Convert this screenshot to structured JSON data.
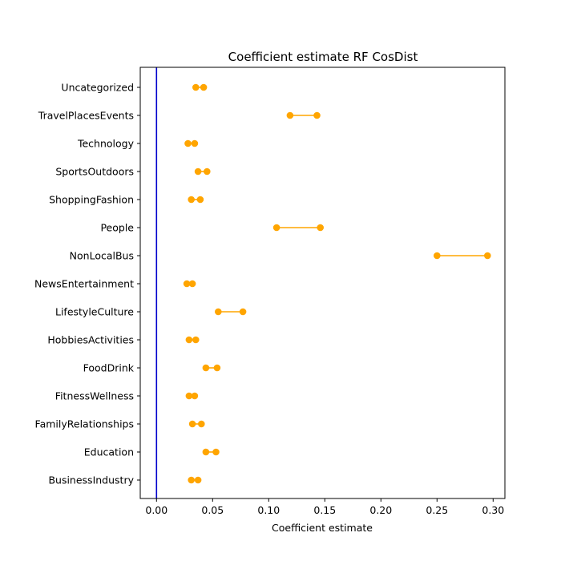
{
  "chart_data": {
    "type": "dumbbell",
    "title": "Coefficient estimate RF  CosDist",
    "xlabel": "Coefficient estimate",
    "ylabel": "",
    "xlim": [
      -0.0145,
      0.3105
    ],
    "x_ticks": [
      0.0,
      0.05,
      0.1,
      0.15,
      0.2,
      0.25,
      0.3
    ],
    "x_tick_labels": [
      "0.00",
      "0.05",
      "0.10",
      "0.15",
      "0.20",
      "0.25",
      "0.30"
    ],
    "grid": false,
    "reference_line": {
      "x": 0.0,
      "color": "#0000cc"
    },
    "series_color": "#ffa500",
    "categories": [
      "Uncategorized",
      "TravelPlacesEvents",
      "Technology",
      "SportsOutdoors",
      "ShoppingFashion",
      "People",
      "NonLocalBus",
      "NewsEntertainment",
      "LifestyleCulture",
      "HobbiesActivities",
      "FoodDrink",
      "FitnessWellness",
      "FamilyRelationships",
      "Education",
      "BusinessIndustry"
    ],
    "intervals": [
      {
        "low": 0.035,
        "high": 0.042
      },
      {
        "low": 0.119,
        "high": 0.143
      },
      {
        "low": 0.028,
        "high": 0.034
      },
      {
        "low": 0.037,
        "high": 0.045
      },
      {
        "low": 0.031,
        "high": 0.039
      },
      {
        "low": 0.107,
        "high": 0.146
      },
      {
        "low": 0.25,
        "high": 0.295
      },
      {
        "low": 0.027,
        "high": 0.032
      },
      {
        "low": 0.055,
        "high": 0.077
      },
      {
        "low": 0.029,
        "high": 0.035
      },
      {
        "low": 0.044,
        "high": 0.054
      },
      {
        "low": 0.029,
        "high": 0.034
      },
      {
        "low": 0.032,
        "high": 0.04
      },
      {
        "low": 0.044,
        "high": 0.053
      },
      {
        "low": 0.031,
        "high": 0.037
      }
    ]
  }
}
